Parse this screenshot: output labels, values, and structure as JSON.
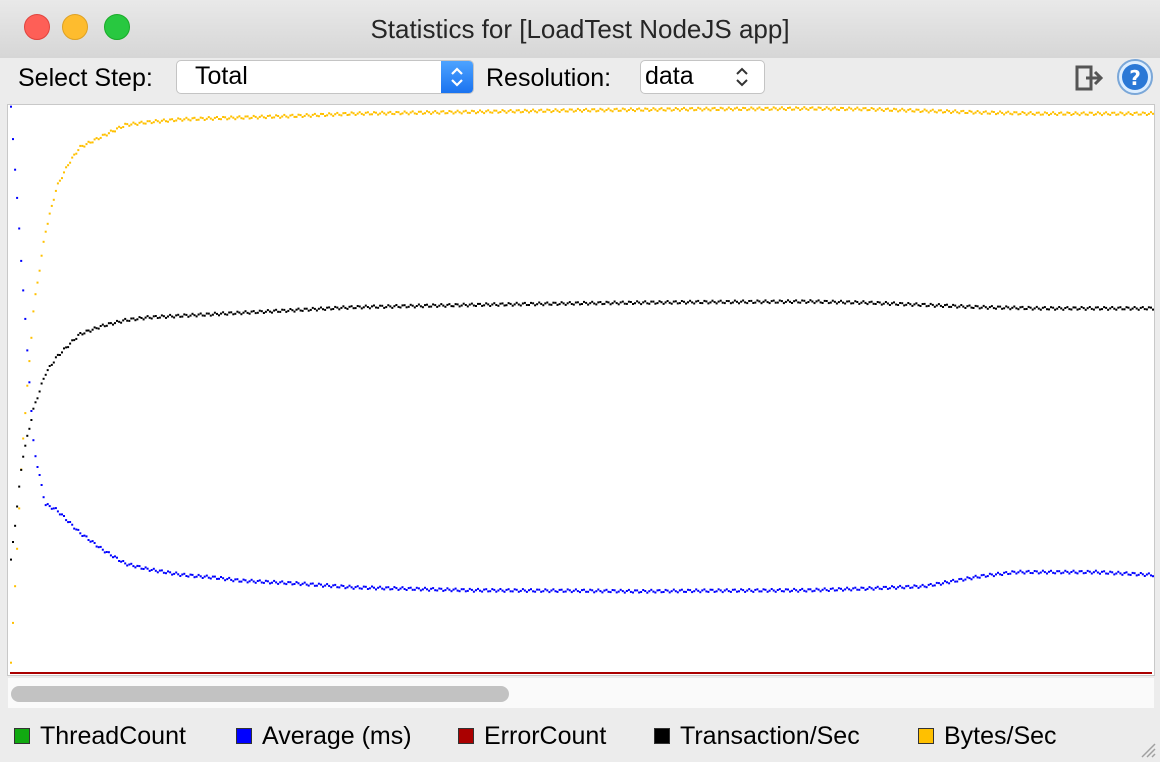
{
  "window": {
    "title": "Statistics for [LoadTest NodeJS app]"
  },
  "toolbar": {
    "select_step_label": "Select Step:",
    "select_step_value": "Total",
    "resolution_label": "Resolution:",
    "resolution_value": "data",
    "export_icon": "export-icon",
    "help_icon": "help-icon"
  },
  "legend": {
    "items": [
      {
        "label": "ThreadCount",
        "color": "#11aa11"
      },
      {
        "label": "Average (ms)",
        "color": "#0000ff"
      },
      {
        "label": "ErrorCount",
        "color": "#aa0000"
      },
      {
        "label": "Transaction/Sec",
        "color": "#000000"
      },
      {
        "label": "Bytes/Sec",
        "color": "#ffc000"
      }
    ]
  },
  "chart_data": {
    "type": "scatter",
    "grid": false,
    "legend_position": "bottom",
    "xlim": [
      0,
      100
    ],
    "ylim": [
      0,
      100
    ],
    "series": [
      {
        "name": "Bytes/Sec",
        "color": "#ffc000",
        "x": [
          0,
          1,
          2,
          3,
          4,
          5,
          6,
          8,
          10,
          12,
          15,
          20,
          25,
          30,
          40,
          50,
          60,
          70,
          75,
          80,
          85,
          90,
          95,
          100
        ],
        "y": [
          2,
          40,
          65,
          78,
          86,
          90,
          93,
          95,
          97,
          97.5,
          98,
          98.3,
          98.6,
          99,
          99.3,
          99.6,
          99.8,
          99.9,
          99.8,
          99.5,
          99.2,
          99,
          99,
          99
        ]
      },
      {
        "name": "Transaction/Sec",
        "color": "#000000",
        "x": [
          0,
          1,
          2,
          3,
          4,
          5,
          6,
          8,
          10,
          12,
          15,
          20,
          25,
          30,
          40,
          50,
          60,
          70,
          75,
          80,
          85,
          90,
          95,
          100
        ],
        "y": [
          20,
          38,
          47,
          53,
          56,
          58,
          60,
          61.5,
          62.5,
          63,
          63.3,
          63.8,
          64.3,
          64.8,
          65.2,
          65.5,
          65.7,
          65.8,
          65.6,
          65.2,
          64.8,
          64.6,
          64.6,
          64.6
        ]
      },
      {
        "name": "Average (ms)",
        "color": "#0000ff",
        "x": [
          0,
          1,
          2,
          3,
          4,
          5,
          6,
          8,
          10,
          12,
          15,
          18,
          20,
          25,
          30,
          40,
          50,
          55,
          60,
          70,
          75,
          80,
          85,
          88,
          90,
          95,
          100
        ],
        "y": [
          100,
          70,
          40,
          30,
          29,
          27,
          25,
          22,
          19.5,
          18.5,
          17.5,
          17,
          16.5,
          16,
          15.3,
          14.8,
          14.7,
          14.6,
          14.7,
          14.8,
          15.1,
          15.5,
          17.3,
          18,
          18,
          18,
          17.5
        ]
      },
      {
        "name": "ErrorCount",
        "color": "#aa0000",
        "x": [
          0,
          100
        ],
        "y": [
          0,
          0
        ]
      }
    ]
  }
}
